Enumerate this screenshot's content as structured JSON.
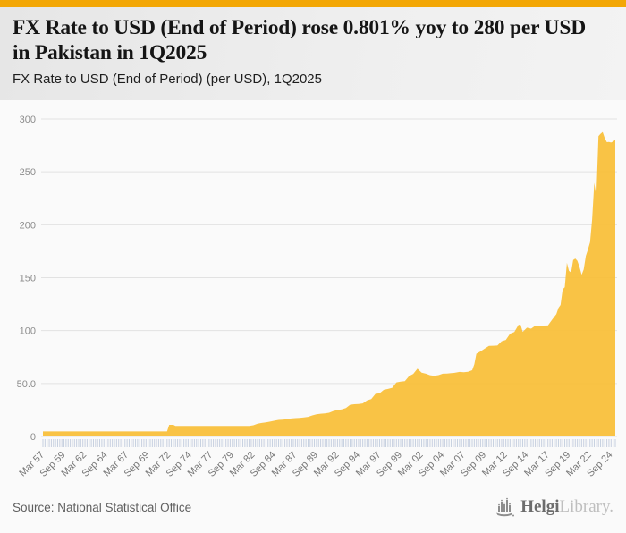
{
  "page": {
    "accent_color": "#f3a705",
    "background": "#fafafa"
  },
  "header": {
    "title": "FX Rate to USD (End of Period) rose 0.801% yoy to 280 per USD in Pakistan in 1Q2025",
    "subtitle": "FX Rate to USD (End of Period) (per USD), 1Q2025"
  },
  "footer": {
    "source": "Source: National Statistical Office",
    "logo": {
      "brand_primary": "Helgi",
      "brand_secondary": "Library."
    }
  },
  "chart_data": {
    "type": "area",
    "title": "FX Rate to USD (End of Period) (per USD), 1Q2025",
    "series_name": "FX Rate to USD (End of Period), Pakistan",
    "unit": "per USD",
    "ylim": [
      0,
      300
    ],
    "grid": true,
    "legend": "none",
    "y_tick_labels": [
      "0",
      "50.0",
      "100",
      "150",
      "200",
      "250",
      "300"
    ],
    "x_tick_labels": [
      "Mar 57",
      "Sep 59",
      "Mar 62",
      "Sep 64",
      "Mar 67",
      "Sep 69",
      "Mar 72",
      "Sep 74",
      "Mar 77",
      "Sep 79",
      "Mar 82",
      "Sep 84",
      "Mar 87",
      "Sep 89",
      "Mar 92",
      "Sep 94",
      "Mar 97",
      "Sep 99",
      "Mar 02",
      "Sep 04",
      "Mar 07",
      "Sep 09",
      "Mar 12",
      "Sep 14",
      "Mar 17",
      "Sep 19",
      "Mar 22",
      "Sep 24"
    ],
    "quarters_between_labels": 10,
    "x_start_year": 1957.25,
    "total_quarters": 272,
    "latest_value": 280.2,
    "latest_period": "1Q2025",
    "area_color": "#f9be37",
    "grid_color": "#e2e2e2",
    "tick_color": "#c7d0e0",
    "y_label_color": "#8c8c8c",
    "x_label_color": "#787878",
    "points": [
      [
        1957.25,
        4.76
      ],
      [
        1971.75,
        4.76
      ],
      [
        1972.0,
        4.76
      ],
      [
        1972.25,
        11.0
      ],
      [
        1972.75,
        11.0
      ],
      [
        1973.0,
        9.9
      ],
      [
        1981.75,
        9.9
      ],
      [
        1982.25,
        10.6
      ],
      [
        1982.75,
        12.0
      ],
      [
        1983.25,
        12.8
      ],
      [
        1983.75,
        13.3
      ],
      [
        1984.25,
        14.0
      ],
      [
        1984.75,
        14.9
      ],
      [
        1985.25,
        15.6
      ],
      [
        1985.75,
        15.9
      ],
      [
        1986.25,
        16.3
      ],
      [
        1986.75,
        17.0
      ],
      [
        1987.25,
        17.3
      ],
      [
        1987.75,
        17.5
      ],
      [
        1988.25,
        18.0
      ],
      [
        1988.75,
        18.5
      ],
      [
        1989.25,
        19.9
      ],
      [
        1989.75,
        20.9
      ],
      [
        1990.25,
        21.5
      ],
      [
        1990.75,
        21.7
      ],
      [
        1991.25,
        22.4
      ],
      [
        1991.75,
        24.0
      ],
      [
        1992.25,
        24.9
      ],
      [
        1992.75,
        25.6
      ],
      [
        1993.25,
        26.9
      ],
      [
        1993.75,
        29.9
      ],
      [
        1994.25,
        30.4
      ],
      [
        1994.75,
        30.7
      ],
      [
        1995.25,
        31.2
      ],
      [
        1995.75,
        34.0
      ],
      [
        1996.25,
        35.3
      ],
      [
        1996.75,
        40.1
      ],
      [
        1997.25,
        40.8
      ],
      [
        1997.75,
        44.0
      ],
      [
        1998.25,
        44.9
      ],
      [
        1998.75,
        46.0
      ],
      [
        1999.25,
        51.0
      ],
      [
        1999.75,
        51.7
      ],
      [
        2000.25,
        52.1
      ],
      [
        2000.75,
        57.0
      ],
      [
        2001.25,
        59.1
      ],
      [
        2001.75,
        64.0
      ],
      [
        2002.25,
        60.2
      ],
      [
        2002.75,
        59.2
      ],
      [
        2003.25,
        57.8
      ],
      [
        2003.75,
        57.2
      ],
      [
        2004.25,
        57.9
      ],
      [
        2004.75,
        59.2
      ],
      [
        2005.25,
        59.4
      ],
      [
        2005.75,
        59.8
      ],
      [
        2006.25,
        60.2
      ],
      [
        2006.75,
        60.9
      ],
      [
        2007.25,
        60.7
      ],
      [
        2007.75,
        61.0
      ],
      [
        2008.25,
        62.5
      ],
      [
        2008.5,
        68.3
      ],
      [
        2008.75,
        78.2
      ],
      [
        2009.25,
        80.4
      ],
      [
        2009.75,
        83.1
      ],
      [
        2010.25,
        85.5
      ],
      [
        2010.75,
        85.7
      ],
      [
        2011.25,
        85.9
      ],
      [
        2011.75,
        89.9
      ],
      [
        2012.25,
        91.2
      ],
      [
        2012.75,
        97.1
      ],
      [
        2013.25,
        98.6
      ],
      [
        2013.75,
        105.4
      ],
      [
        2014.0,
        105.6
      ],
      [
        2014.25,
        98.8
      ],
      [
        2014.75,
        102.8
      ],
      [
        2015.25,
        101.8
      ],
      [
        2015.75,
        104.7
      ],
      [
        2016.25,
        104.8
      ],
      [
        2016.75,
        104.8
      ],
      [
        2017.25,
        104.9
      ],
      [
        2017.75,
        110.4
      ],
      [
        2018.25,
        115.6
      ],
      [
        2018.5,
        121.5
      ],
      [
        2018.75,
        124.2
      ],
      [
        2019.0,
        139.1
      ],
      [
        2019.25,
        141.0
      ],
      [
        2019.5,
        164.0
      ],
      [
        2019.75,
        156.4
      ],
      [
        2020.0,
        154.9
      ],
      [
        2020.25,
        166.7
      ],
      [
        2020.5,
        168.1
      ],
      [
        2020.75,
        166.0
      ],
      [
        2021.0,
        160.1
      ],
      [
        2021.25,
        152.8
      ],
      [
        2021.5,
        157.8
      ],
      [
        2021.75,
        170.6
      ],
      [
        2022.0,
        176.5
      ],
      [
        2022.25,
        183.5
      ],
      [
        2022.5,
        204.9
      ],
      [
        2022.75,
        239.7
      ],
      [
        2023.0,
        226.4
      ],
      [
        2023.25,
        283.8
      ],
      [
        2023.5,
        286.0
      ],
      [
        2023.75,
        287.7
      ],
      [
        2024.0,
        281.9
      ],
      [
        2024.25,
        278.0
      ],
      [
        2024.5,
        278.3
      ],
      [
        2024.75,
        277.7
      ],
      [
        2025.0,
        278.6
      ],
      [
        2025.25,
        280.2
      ]
    ]
  }
}
